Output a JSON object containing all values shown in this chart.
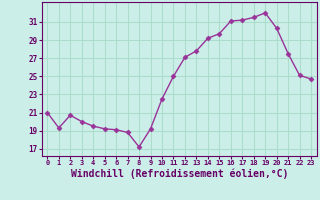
{
  "x": [
    0,
    1,
    2,
    3,
    4,
    5,
    6,
    7,
    8,
    9,
    10,
    11,
    12,
    13,
    14,
    15,
    16,
    17,
    18,
    19,
    20,
    21,
    22,
    23
  ],
  "y": [
    21.0,
    19.3,
    20.7,
    20.0,
    19.5,
    19.2,
    19.1,
    18.8,
    17.2,
    19.2,
    22.5,
    25.0,
    27.1,
    27.8,
    29.2,
    29.7,
    31.1,
    31.2,
    31.5,
    32.0,
    30.3,
    27.5,
    25.1,
    24.7
  ],
  "line_color": "#993399",
  "marker": "D",
  "marker_size": 2.5,
  "bg_color": "#cceee8",
  "grid_color": "#aaddcc",
  "xlabel": "Windchill (Refroidissement éolien,°C)",
  "xlabel_fontsize": 7,
  "xtick_labels": [
    "0",
    "1",
    "2",
    "3",
    "4",
    "5",
    "6",
    "7",
    "8",
    "9",
    "10",
    "11",
    "12",
    "13",
    "14",
    "15",
    "16",
    "17",
    "18",
    "19",
    "20",
    "21",
    "22",
    "23"
  ],
  "ytick_values": [
    17,
    19,
    21,
    23,
    25,
    27,
    29,
    31
  ],
  "ylim": [
    16.2,
    33.2
  ],
  "xlim": [
    -0.5,
    23.5
  ]
}
